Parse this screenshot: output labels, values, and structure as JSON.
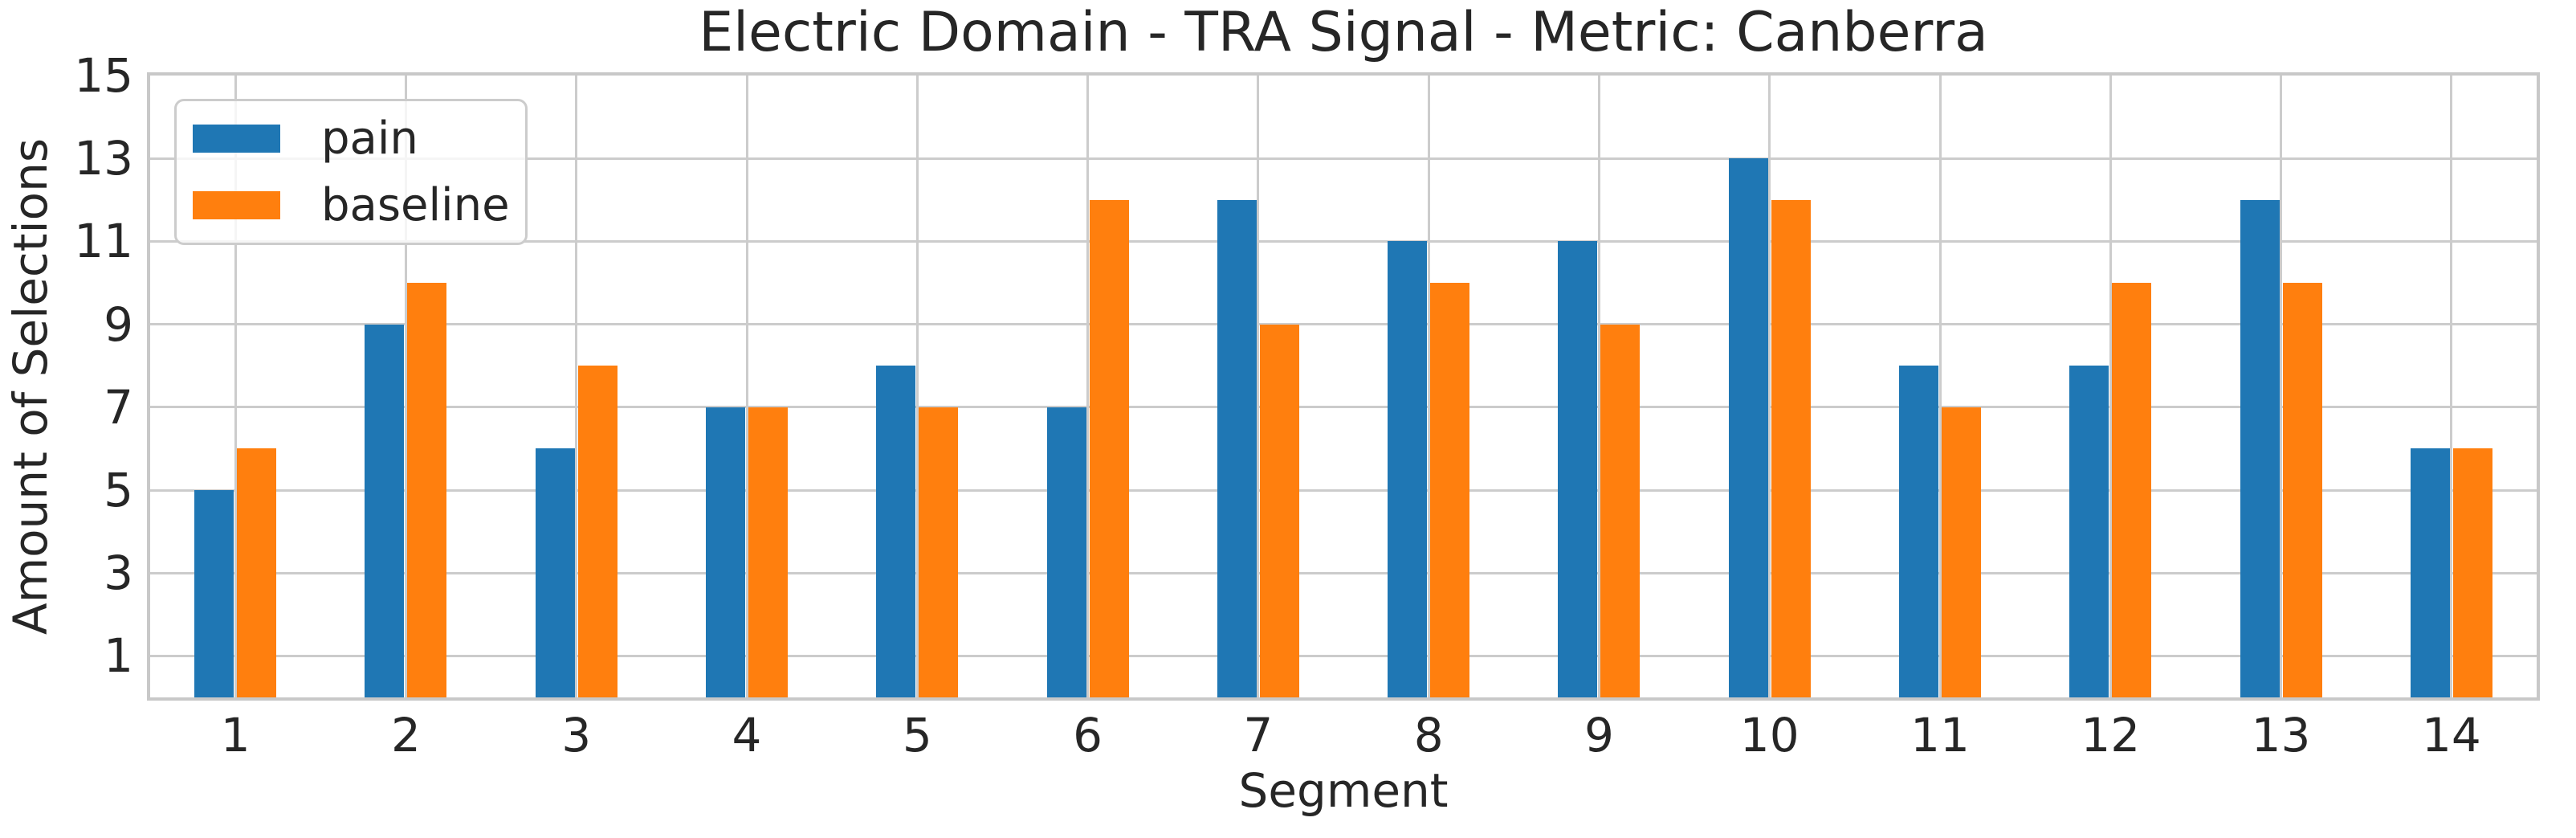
{
  "chart_data": {
    "type": "bar",
    "title": "Electric Domain - TRA Signal - Metric: Canberra",
    "xlabel": "Segment",
    "ylabel": "Amount of Selections",
    "categories": [
      "1",
      "2",
      "3",
      "4",
      "5",
      "6",
      "7",
      "8",
      "9",
      "10",
      "11",
      "12",
      "13",
      "14"
    ],
    "series": [
      {
        "name": "pain",
        "color": "#1f77b4",
        "values": [
          5,
          9,
          6,
          7,
          8,
          7,
          12,
          11,
          11,
          13,
          8,
          8,
          12,
          6
        ]
      },
      {
        "name": "baseline",
        "color": "#ff7f0e",
        "values": [
          6,
          10,
          8,
          7,
          7,
          12,
          9,
          10,
          9,
          12,
          7,
          10,
          10,
          6
        ]
      }
    ],
    "ylim": [
      0,
      15
    ],
    "yticks": [
      1,
      3,
      5,
      7,
      9,
      11,
      13,
      15
    ],
    "grid": true,
    "legend_position": "upper-left"
  },
  "style": {
    "grid_color": "#cccccc",
    "spine_color": "#c8c8c8",
    "text_color": "#262626",
    "background_color": "#ffffff"
  }
}
